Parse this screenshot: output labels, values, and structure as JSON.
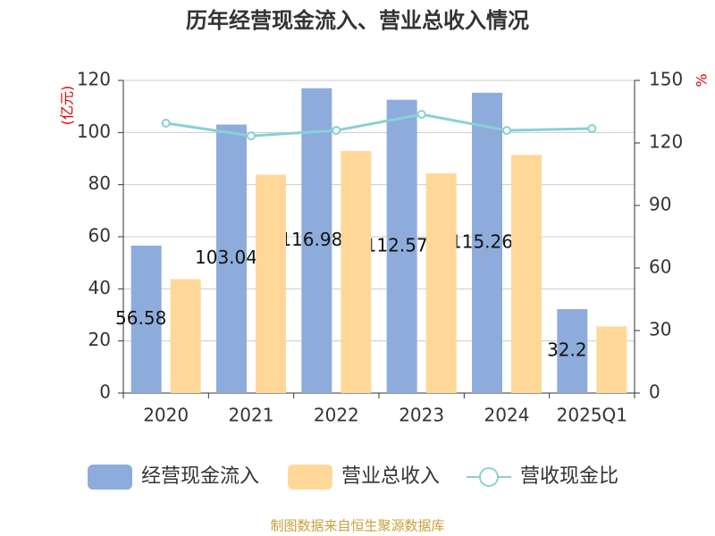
{
  "chart_data": {
    "type": "bar",
    "title": "历年经营现金流入、营业总收入情况",
    "y_label": "(亿元)",
    "y2_label": "%",
    "source": "制图数据来自恒生聚源数据库",
    "categories": [
      "2020",
      "2021",
      "2022",
      "2023",
      "2024",
      "2025Q1"
    ],
    "series": [
      {
        "name": "经营现金流入",
        "type": "bar",
        "color": "#8eacdb",
        "values": [
          56.58,
          103.04,
          116.98,
          112.57,
          115.26,
          32.2
        ],
        "show_labels": true
      },
      {
        "name": "营业总收入",
        "type": "bar",
        "color": "#ffd899",
        "values": [
          43.7,
          83.8,
          92.9,
          84.3,
          91.4,
          25.6
        ]
      },
      {
        "name": "营收现金比",
        "type": "line",
        "axis": "y2",
        "color": "#88d1d4",
        "values": [
          129.5,
          123.4,
          126,
          133.7,
          126,
          126.9
        ]
      }
    ],
    "ylim": [
      0,
      120
    ],
    "yticks": [
      0,
      20,
      40,
      60,
      80,
      100,
      120
    ],
    "y2lim": [
      0,
      150
    ],
    "y2ticks": [
      0,
      30,
      60,
      90,
      120,
      150
    ],
    "grid": true
  }
}
